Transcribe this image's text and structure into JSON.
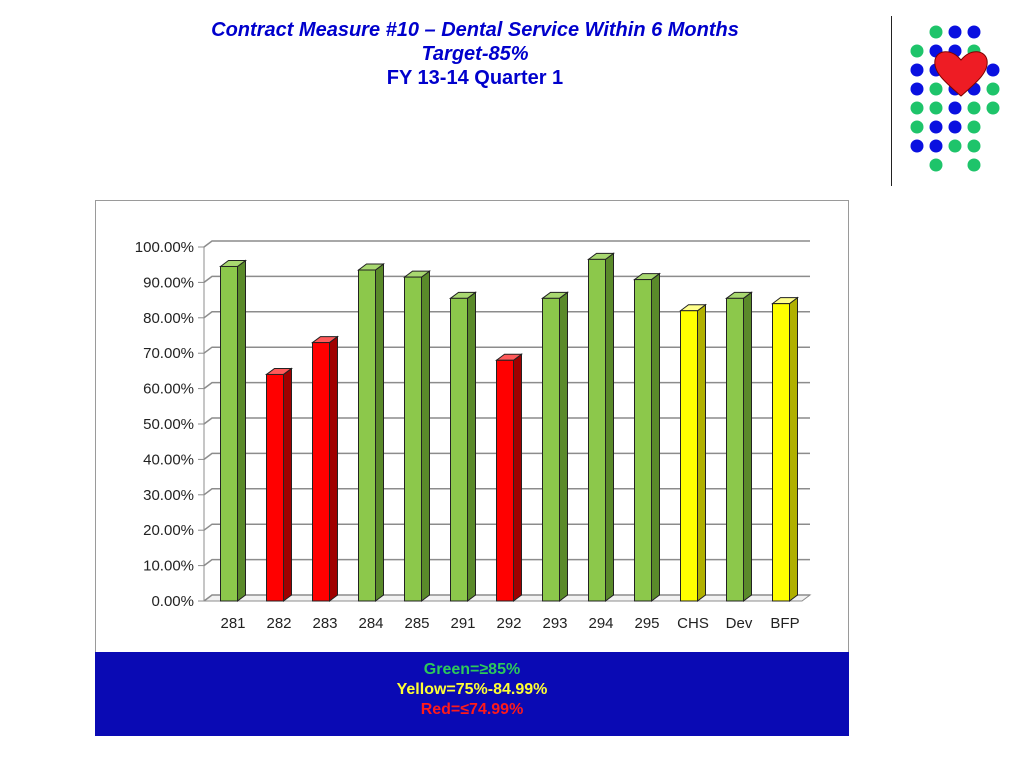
{
  "header": {
    "title_line1": "Contract Measure #10 – Dental Service Within 6 Months",
    "title_line2": "Target-85%",
    "title_line3": "FY 13-14 Quarter 1"
  },
  "logo": {
    "icon": "heart-dots-logo",
    "dot_colors": [
      "#1ec46a",
      "#0a10e0"
    ],
    "heart_color": "#ee1c24"
  },
  "legend": {
    "green": "Green=≥85%",
    "yellow": "Yellow=75%-84.99%",
    "red": "Red=≤74.99%",
    "background": "#0a0ab4"
  },
  "chart_data": {
    "type": "bar",
    "categories": [
      "281",
      "282",
      "283",
      "284",
      "285",
      "291",
      "292",
      "293",
      "294",
      "295",
      "CHS",
      "Dev",
      "BFP"
    ],
    "values": [
      94.5,
      64,
      73,
      93.5,
      91.5,
      85.5,
      68,
      85.5,
      96.5,
      90.8,
      82,
      85.5,
      84
    ],
    "bar_colors": [
      "green",
      "red",
      "red",
      "green",
      "green",
      "green",
      "red",
      "green",
      "green",
      "green",
      "yellow",
      "green",
      "yellow"
    ],
    "colors": {
      "green": "#8cc84b",
      "red": "#ff0000",
      "yellow": "#ffff00"
    },
    "ylim": [
      0,
      100
    ],
    "y_ticks": [
      "0.00%",
      "10.00%",
      "20.00%",
      "30.00%",
      "40.00%",
      "50.00%",
      "60.00%",
      "70.00%",
      "80.00%",
      "90.00%",
      "100.00%"
    ],
    "grid": true,
    "title": "",
    "xlabel": "",
    "ylabel": ""
  }
}
